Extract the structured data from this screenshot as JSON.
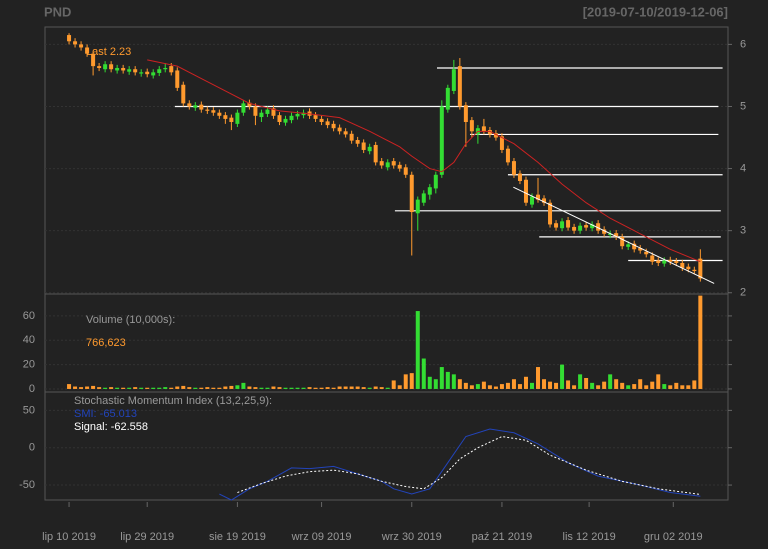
{
  "chart_data": [
    {
      "type": "candlestick",
      "title": "PND",
      "subtitle": "[2019-07-10/2019-12-06]",
      "annotation": "Last 2.23",
      "up_color": "#33dd33",
      "down_color": "#ff9a2e",
      "xlim": [
        -4,
        109.6
      ],
      "ylim": [
        1.98,
        6.28
      ],
      "yticks": [
        2,
        3,
        4,
        5,
        6
      ],
      "grid": true,
      "open": [
        6.15,
        6.05,
        6.0,
        5.95,
        5.85,
        5.65,
        5.6,
        5.68,
        5.58,
        5.62,
        5.56,
        5.6,
        5.53,
        5.56,
        5.5,
        5.54,
        5.6,
        5.65,
        5.58,
        5.35,
        5.05,
        4.98,
        5.03,
        4.95,
        4.94,
        4.9,
        4.86,
        4.82,
        4.72,
        4.9,
        5.06,
        5.0,
        4.83,
        4.88,
        4.97,
        4.86,
        4.74,
        4.78,
        4.84,
        4.86,
        4.92,
        4.86,
        4.8,
        4.76,
        4.72,
        4.66,
        4.6,
        4.56,
        4.46,
        4.42,
        4.28,
        4.38,
        4.12,
        4.02,
        4.12,
        4.06,
        4.02,
        3.9,
        3.28,
        3.45,
        3.58,
        3.68,
        3.9,
        4.95,
        5.25,
        5.65,
        5.02,
        4.78,
        4.55,
        4.68,
        4.62,
        4.57,
        4.52,
        4.32,
        4.12,
        3.92,
        3.82,
        3.42,
        3.58,
        3.52,
        3.45,
        3.12,
        3.04,
        3.17,
        3.06,
        3.0,
        3.09,
        3.04,
        3.12,
        3.02,
        2.93,
        2.96,
        2.9,
        2.74,
        2.79,
        2.72,
        2.66,
        2.6,
        2.52,
        2.47,
        2.53,
        2.51,
        2.48,
        2.42,
        2.37,
        2.55
      ],
      "high": [
        6.18,
        6.1,
        6.05,
        6.0,
        5.9,
        5.7,
        5.73,
        5.73,
        5.67,
        5.67,
        5.65,
        5.65,
        5.6,
        5.61,
        5.6,
        5.65,
        5.7,
        5.7,
        5.63,
        5.4,
        5.1,
        5.07,
        5.08,
        5.0,
        4.99,
        4.95,
        4.91,
        4.87,
        4.95,
        5.1,
        5.11,
        5.05,
        4.95,
        5.0,
        5.02,
        4.91,
        4.85,
        4.9,
        4.93,
        4.95,
        4.97,
        4.91,
        4.85,
        4.81,
        4.77,
        4.71,
        4.65,
        4.61,
        4.51,
        4.47,
        4.4,
        4.43,
        4.17,
        4.15,
        4.17,
        4.11,
        4.07,
        3.95,
        3.55,
        3.65,
        3.75,
        3.95,
        5.1,
        5.35,
        5.75,
        5.78,
        5.07,
        4.83,
        4.7,
        4.8,
        4.67,
        4.62,
        4.57,
        4.37,
        4.17,
        3.97,
        3.87,
        3.6,
        3.85,
        3.57,
        3.5,
        3.17,
        3.2,
        3.22,
        3.11,
        3.13,
        3.14,
        3.15,
        3.17,
        3.07,
        3.0,
        3.01,
        2.95,
        2.83,
        2.84,
        2.77,
        2.71,
        2.65,
        2.57,
        2.57,
        2.58,
        2.56,
        2.53,
        2.47,
        2.42,
        2.7
      ],
      "low": [
        6.0,
        5.95,
        5.9,
        5.8,
        5.5,
        5.57,
        5.55,
        5.55,
        5.53,
        5.53,
        5.51,
        5.5,
        5.48,
        5.47,
        5.45,
        5.49,
        5.55,
        5.5,
        5.25,
        5.0,
        4.95,
        4.93,
        4.9,
        4.88,
        4.85,
        4.8,
        4.72,
        4.62,
        4.67,
        4.85,
        4.95,
        4.7,
        4.75,
        4.83,
        4.8,
        4.7,
        4.69,
        4.73,
        4.79,
        4.81,
        4.8,
        4.75,
        4.7,
        4.65,
        4.6,
        4.55,
        4.5,
        4.4,
        4.35,
        4.25,
        4.23,
        4.05,
        4.0,
        3.97,
        4.0,
        3.95,
        3.85,
        2.6,
        3.0,
        3.4,
        3.5,
        3.6,
        3.85,
        4.9,
        5.2,
        4.95,
        4.35,
        4.5,
        4.4,
        4.55,
        4.5,
        4.45,
        4.25,
        4.05,
        3.85,
        3.75,
        3.4,
        3.37,
        3.45,
        3.4,
        3.05,
        3.0,
        2.99,
        3.0,
        2.95,
        2.95,
        3.0,
        2.99,
        2.95,
        2.9,
        2.88,
        2.85,
        2.7,
        2.69,
        2.65,
        2.63,
        2.57,
        2.45,
        2.43,
        2.42,
        2.45,
        2.43,
        2.35,
        2.33,
        2.3,
        2.18
      ],
      "close": [
        6.05,
        6.0,
        5.95,
        5.85,
        5.65,
        5.62,
        5.68,
        5.6,
        5.62,
        5.58,
        5.6,
        5.55,
        5.55,
        5.52,
        5.55,
        5.6,
        5.62,
        5.55,
        5.3,
        5.05,
        5.0,
        5.02,
        4.95,
        4.93,
        4.9,
        4.85,
        4.8,
        4.75,
        4.9,
        5.05,
        5.0,
        4.85,
        4.9,
        4.95,
        4.85,
        4.75,
        4.8,
        4.85,
        4.88,
        4.9,
        4.85,
        4.8,
        4.75,
        4.7,
        4.65,
        4.6,
        4.55,
        4.45,
        4.4,
        4.3,
        4.35,
        4.1,
        4.05,
        4.1,
        4.05,
        4.0,
        3.9,
        3.3,
        3.5,
        3.6,
        3.7,
        3.9,
        5.0,
        5.3,
        5.6,
        5.0,
        4.75,
        4.6,
        4.65,
        4.6,
        4.55,
        4.5,
        4.3,
        4.1,
        3.9,
        3.8,
        3.45,
        3.55,
        3.5,
        3.45,
        3.1,
        3.05,
        3.15,
        3.05,
        3.0,
        3.08,
        3.05,
        3.1,
        3.0,
        2.95,
        2.95,
        2.9,
        2.75,
        2.78,
        2.7,
        2.68,
        2.62,
        2.5,
        2.48,
        2.52,
        2.5,
        2.48,
        2.4,
        2.38,
        2.35,
        2.23
      ],
      "sma": {
        "color": "#cc2222",
        "x": [
          13,
          18,
          22,
          26,
          30,
          35,
          40,
          45,
          50,
          55,
          57,
          60,
          62,
          64,
          66,
          68,
          70,
          74,
          78,
          82,
          86,
          90,
          95,
          100,
          105
        ],
        "values": [
          5.75,
          5.65,
          5.45,
          5.25,
          5.05,
          4.93,
          4.88,
          4.82,
          4.6,
          4.35,
          4.2,
          4.0,
          3.95,
          4.1,
          4.4,
          4.6,
          4.6,
          4.4,
          4.1,
          3.75,
          3.45,
          3.2,
          2.95,
          2.7,
          2.5
        ]
      },
      "hlines": [
        {
          "value": 5.62,
          "x0": 61.2,
          "x1": 108.7
        },
        {
          "value": 5.0,
          "x0": 17.6,
          "x1": 108
        },
        {
          "value": 4.55,
          "x0": 66.7,
          "x1": 108
        },
        {
          "value": 3.9,
          "x0": 73,
          "x1": 108.7
        },
        {
          "value": 3.32,
          "x0": 54.2,
          "x1": 108.4
        },
        {
          "value": 2.9,
          "x0": 78.2,
          "x1": 108.4
        },
        {
          "value": 2.52,
          "x0": 93,
          "x1": 108.7
        }
      ],
      "trendline": {
        "x": [
          73.9,
          107.3
        ],
        "values": [
          3.7,
          2.15
        ]
      }
    },
    {
      "type": "bar",
      "label": "Volume (10,000s):",
      "last_label": "766,623",
      "xlim": [
        -4,
        109.6
      ],
      "ylim": [
        -2.5,
        78
      ],
      "yticks": [
        0,
        20,
        40,
        60
      ],
      "grid": true,
      "values": [
        4,
        2,
        1.5,
        2,
        2.5,
        1.5,
        1,
        1.5,
        1,
        1,
        1,
        1.5,
        1,
        1,
        1,
        1,
        1.5,
        1,
        2,
        2.5,
        1.5,
        1,
        1,
        1.5,
        1,
        1,
        2,
        2.5,
        3,
        5,
        2,
        1.5,
        1,
        1,
        2,
        1.5,
        1,
        1,
        1,
        1,
        1.5,
        1,
        1,
        1.5,
        1,
        2,
        2,
        2,
        2,
        1.5,
        1,
        2,
        1.5,
        1,
        7,
        3,
        12,
        13,
        64,
        25,
        10,
        8,
        18,
        14,
        12,
        8,
        5,
        3,
        4,
        6,
        3,
        2,
        4,
        5,
        8,
        4,
        10,
        5,
        18,
        8,
        6,
        5,
        20,
        7,
        3,
        12,
        9,
        5,
        3,
        6,
        12,
        8,
        5,
        3,
        4,
        8,
        3,
        6,
        12,
        4,
        3,
        5,
        3,
        3,
        7,
        76.6623
      ]
    },
    {
      "type": "line",
      "label": "Stochastic Momentum Index (13,2,25,9):",
      "xlim": [
        -4,
        109.6
      ],
      "ylim": [
        -70,
        74.6
      ],
      "yticks": [
        -50,
        0,
        50
      ],
      "grid": true,
      "xticks": [
        {
          "value": 0,
          "label": "lip 10 2019"
        },
        {
          "value": 13,
          "label": "lip 29 2019"
        },
        {
          "value": 28,
          "label": "sie 19 2019"
        },
        {
          "value": 42,
          "label": "wrz 09 2019"
        },
        {
          "value": 57,
          "label": "wrz 30 2019"
        },
        {
          "value": 72,
          "label": "paź 21 2019"
        },
        {
          "value": 86.5,
          "label": "lis 12 2019"
        },
        {
          "value": 100.5,
          "label": "gru 02 2019"
        }
      ],
      "series": [
        {
          "name": "SMI",
          "label": "SMI: -65.013",
          "color": "#2244bb",
          "dash": false,
          "x": [
            25,
            27,
            30,
            33,
            37,
            40,
            44,
            48,
            52,
            54,
            57,
            60,
            63,
            66,
            70,
            74,
            78,
            83,
            88,
            95,
            100,
            105
          ],
          "values": [
            -62,
            -70,
            -55,
            -45,
            -27,
            -28,
            -25,
            -35,
            -45,
            -55,
            -62,
            -55,
            -20,
            15,
            25,
            20,
            5,
            -20,
            -38,
            -50,
            -60,
            -65.013
          ]
        },
        {
          "name": "Signal",
          "label": "Signal: -62.558",
          "color": "#ffffff",
          "dash": true,
          "x": [
            28,
            32,
            36,
            40,
            44,
            48,
            52,
            56,
            59,
            62,
            65,
            68,
            72,
            76,
            80,
            86,
            92,
            98,
            105
          ],
          "values": [
            -60,
            -48,
            -38,
            -32,
            -30,
            -35,
            -45,
            -52,
            -55,
            -40,
            -15,
            0,
            15,
            10,
            -10,
            -30,
            -45,
            -55,
            -62.558
          ]
        }
      ]
    }
  ]
}
